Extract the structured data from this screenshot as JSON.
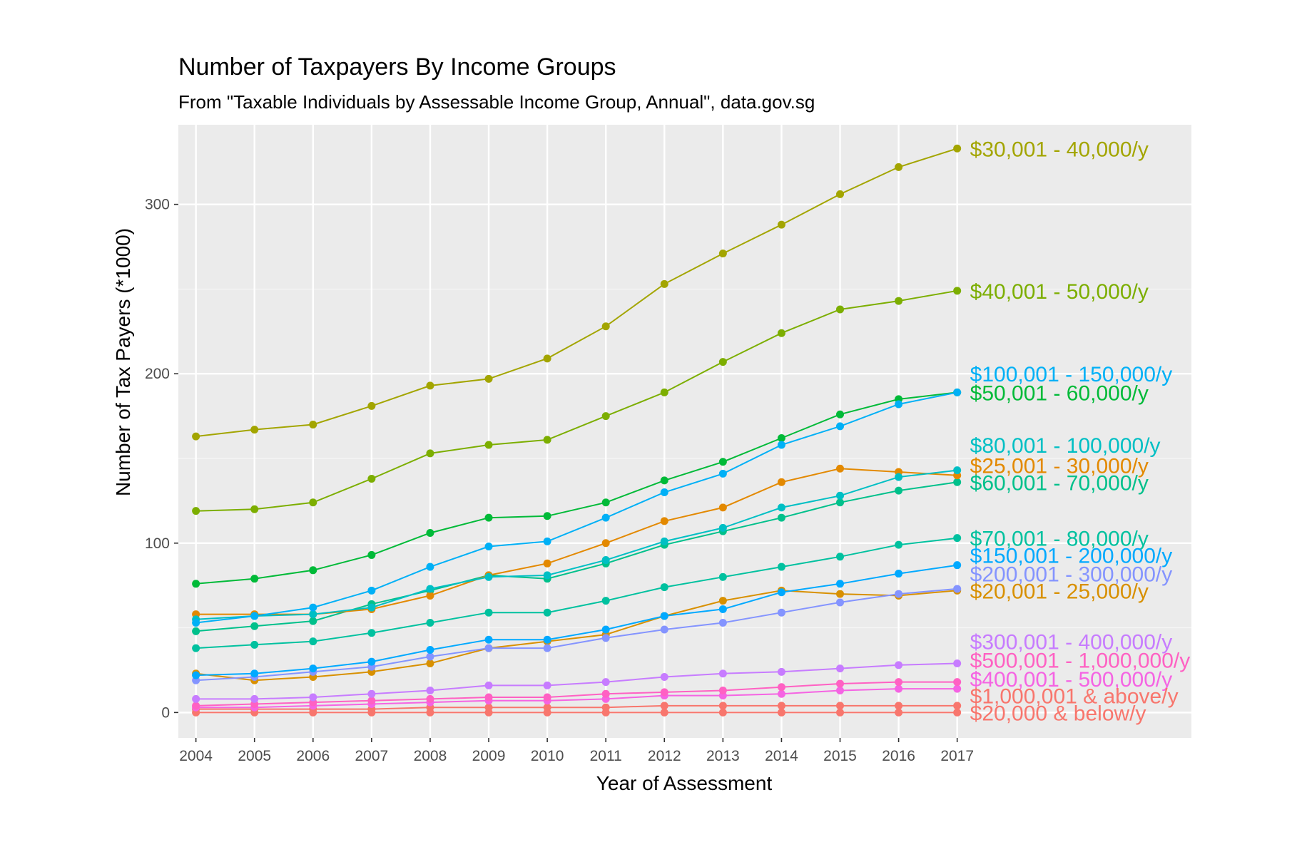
{
  "chart_data": {
    "type": "line",
    "title": "Number of Taxpayers By Income Groups",
    "subtitle": "From \"Taxable Individuals by Assessable Income Group, Annual\", data.gov.sg",
    "xlabel": "Year of Assessment",
    "ylabel": "Number of Tax Payers (*1000)",
    "xlim": [
      2003.7,
      2021.0
    ],
    "ylim": [
      -15,
      347
    ],
    "grid": true,
    "legend": "direct labels at line ends",
    "x": [
      2004,
      2005,
      2006,
      2007,
      2008,
      2009,
      2010,
      2011,
      2012,
      2013,
      2014,
      2015,
      2016,
      2017
    ],
    "x_ticks": [
      "2004",
      "2005",
      "2006",
      "2007",
      "2008",
      "2009",
      "2010",
      "2011",
      "2012",
      "2013",
      "2014",
      "2015",
      "2016",
      "2017"
    ],
    "y_ticks": [
      0,
      100,
      200,
      300
    ],
    "y_tick_labels": [
      "0",
      "100",
      "200",
      "300"
    ],
    "series": [
      {
        "name": "$30,001 - 40,000/y",
        "color": "#a3a500",
        "label_value": 333,
        "values": [
          163,
          167,
          170,
          181,
          193,
          197,
          209,
          228,
          253,
          271,
          288,
          306,
          322,
          333
        ]
      },
      {
        "name": "$40,001 - 50,000/y",
        "color": "#7cae00",
        "label_value": 249,
        "values": [
          119,
          120,
          124,
          138,
          153,
          158,
          161,
          175,
          189,
          207,
          224,
          238,
          243,
          249
        ]
      },
      {
        "name": "$100,001 - 150,000/y",
        "color": "#00b0f6",
        "label_value": 200,
        "values": [
          53,
          57,
          62,
          72,
          86,
          98,
          101,
          115,
          130,
          141,
          158,
          169,
          182,
          189
        ]
      },
      {
        "name": "$50,001 - 60,000/y",
        "color": "#00ba38",
        "label_value": 189,
        "values": [
          76,
          79,
          84,
          93,
          106,
          115,
          116,
          124,
          137,
          148,
          162,
          176,
          185,
          189
        ]
      },
      {
        "name": "$80,001 - 100,000/y",
        "color": "#00bfc4",
        "label_value": 158,
        "values": [
          55,
          57,
          58,
          62,
          73,
          80,
          81,
          90,
          101,
          109,
          121,
          128,
          139,
          143
        ]
      },
      {
        "name": "$25,001 - 30,000/y",
        "color": "#e38900",
        "label_value": 146,
        "values": [
          58,
          58,
          58,
          61,
          69,
          81,
          88,
          100,
          113,
          121,
          136,
          144,
          142,
          140
        ]
      },
      {
        "name": "$60,001 - 70,000/y",
        "color": "#00c08b",
        "label_value": 136,
        "values": [
          48,
          51,
          54,
          64,
          72,
          81,
          79,
          88,
          99,
          107,
          115,
          124,
          131,
          136
        ]
      },
      {
        "name": "$70,001 - 80,000/y",
        "color": "#00c19f",
        "label_value": 103,
        "values": [
          38,
          40,
          42,
          47,
          53,
          59,
          59,
          66,
          74,
          80,
          86,
          92,
          99,
          103
        ]
      },
      {
        "name": "$150,001 - 200,000/y",
        "color": "#00a9ff",
        "label_value": 93,
        "values": [
          22,
          23,
          26,
          30,
          37,
          43,
          43,
          49,
          57,
          61,
          71,
          76,
          82,
          87
        ]
      },
      {
        "name": "$200,001 - 300,000/y",
        "color": "#8494ff",
        "label_value": 82,
        "values": [
          19,
          21,
          24,
          27,
          33,
          38,
          38,
          44,
          49,
          53,
          59,
          65,
          70,
          73
        ]
      },
      {
        "name": "$20,001 - 25,000/y",
        "color": "#d89000",
        "label_value": 72,
        "values": [
          23,
          19,
          21,
          24,
          29,
          38,
          42,
          46,
          57,
          66,
          72,
          70,
          69,
          72
        ]
      },
      {
        "name": "$300,001 - 400,000/y",
        "color": "#c77cff",
        "label_value": 42,
        "values": [
          8,
          8,
          9,
          11,
          13,
          16,
          16,
          18,
          21,
          23,
          24,
          26,
          28,
          29
        ]
      },
      {
        "name": "$500,001 - 1,000,000/y",
        "color": "#ff61c3",
        "label_value": 31,
        "values": [
          4,
          5,
          6,
          7,
          8,
          9,
          9,
          11,
          12,
          13,
          15,
          17,
          18,
          18
        ]
      },
      {
        "name": "$400,001 - 500,000/y",
        "color": "#f564e3",
        "label_value": 20,
        "values": [
          3,
          3,
          4,
          5,
          6,
          7,
          7,
          8,
          10,
          10,
          11,
          13,
          14,
          14
        ]
      },
      {
        "name": "$1,000,001 & above/y",
        "color": "#f8766d",
        "label_value": 10,
        "values": [
          2,
          2,
          2,
          2,
          3,
          3,
          3,
          3,
          4,
          4,
          4,
          4,
          4,
          4
        ]
      },
      {
        "name": "$20,000 & below/y",
        "color": "#f8766d",
        "label_value": 0,
        "values": [
          0,
          0,
          0,
          0,
          0,
          0,
          0,
          0,
          0,
          0,
          0,
          0,
          0,
          0
        ]
      }
    ]
  }
}
